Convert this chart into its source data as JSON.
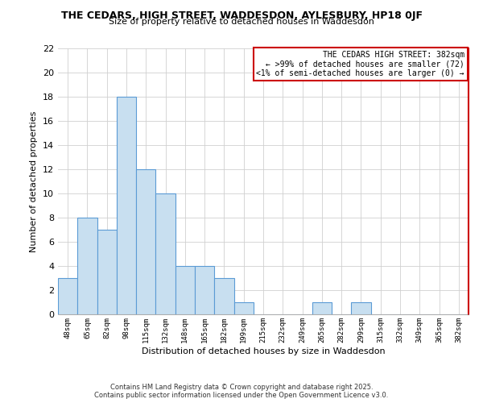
{
  "title": "THE CEDARS, HIGH STREET, WADDESDON, AYLESBURY, HP18 0JF",
  "subtitle": "Size of property relative to detached houses in Waddesdon",
  "xlabel": "Distribution of detached houses by size in Waddesdon",
  "ylabel": "Number of detached properties",
  "bin_labels": [
    "48sqm",
    "65sqm",
    "82sqm",
    "98sqm",
    "115sqm",
    "132sqm",
    "148sqm",
    "165sqm",
    "182sqm",
    "199sqm",
    "215sqm",
    "232sqm",
    "249sqm",
    "265sqm",
    "282sqm",
    "299sqm",
    "315sqm",
    "332sqm",
    "349sqm",
    "365sqm",
    "382sqm"
  ],
  "bar_heights": [
    3,
    8,
    7,
    18,
    12,
    10,
    4,
    4,
    3,
    1,
    0,
    0,
    0,
    1,
    0,
    1,
    0,
    0,
    0,
    0,
    0
  ],
  "bar_color": "#c8dff0",
  "bar_edge_color": "#5b9bd5",
  "ylim": [
    0,
    22
  ],
  "yticks": [
    0,
    2,
    4,
    6,
    8,
    10,
    12,
    14,
    16,
    18,
    20,
    22
  ],
  "grid_color": "#d0d0d0",
  "annotation_box_text_line1": "THE CEDARS HIGH STREET: 382sqm",
  "annotation_box_text_line2": "← >99% of detached houses are smaller (72)",
  "annotation_box_text_line3": "<1% of semi-detached houses are larger (0) →",
  "annotation_box_edge_color": "#cc0000",
  "footer_line1": "Contains HM Land Registry data © Crown copyright and database right 2025.",
  "footer_line2": "Contains public sector information licensed under the Open Government Licence v3.0.",
  "background_color": "#ffffff",
  "right_border_color": "#cc0000"
}
